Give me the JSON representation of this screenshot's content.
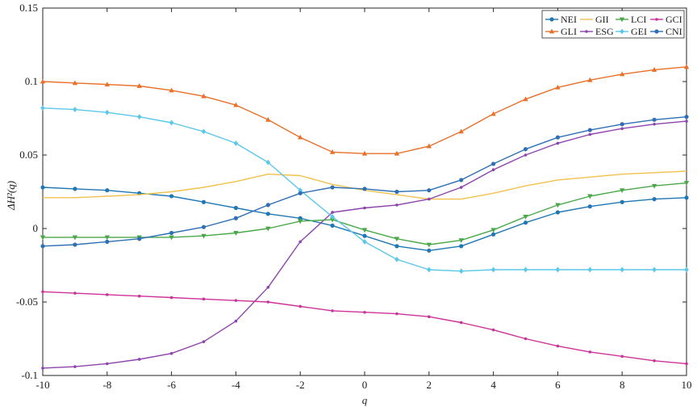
{
  "chart_data": {
    "type": "line",
    "xlabel": "q",
    "ylabel": "ΔH²(q)",
    "xlim": [
      -10,
      10
    ],
    "ylim": [
      -0.1,
      0.15
    ],
    "xticks": [
      -10,
      -8,
      -6,
      -4,
      -2,
      0,
      2,
      4,
      6,
      8,
      10
    ],
    "yticks": [
      -0.1,
      -0.05,
      0,
      0.05,
      0.1,
      0.15
    ],
    "xtick_labels": [
      "-10",
      "-8",
      "-6",
      "-4",
      "-2",
      "0",
      "2",
      "4",
      "6",
      "8",
      "10"
    ],
    "ytick_labels": [
      "-0.1",
      "-0.05",
      "0",
      "0.05",
      "0.1",
      "0.15"
    ],
    "grid": false,
    "legend_position": "top-right",
    "x": [
      -10,
      -9,
      -8,
      -7,
      -6,
      -5,
      -4,
      -3,
      -2,
      -1,
      0,
      1,
      2,
      3,
      4,
      5,
      6,
      7,
      8,
      9,
      10
    ],
    "series": [
      {
        "name": "NEI",
        "color": "#1f77b4",
        "marker": "circle",
        "values": [
          0.028,
          0.027,
          0.026,
          0.024,
          0.022,
          0.018,
          0.014,
          0.01,
          0.007,
          0.002,
          -0.005,
          -0.012,
          -0.015,
          -0.012,
          -0.004,
          0.004,
          0.011,
          0.015,
          0.018,
          0.02,
          0.021
        ]
      },
      {
        "name": "GLI",
        "color": "#e8702a",
        "marker": "triangle",
        "values": [
          0.1,
          0.099,
          0.098,
          0.097,
          0.094,
          0.09,
          0.084,
          0.074,
          0.062,
          0.052,
          0.051,
          0.051,
          0.056,
          0.066,
          0.078,
          0.088,
          0.096,
          0.101,
          0.105,
          0.108,
          0.11
        ]
      },
      {
        "name": "GII",
        "color": "#f2c14e",
        "marker": "none",
        "values": [
          0.021,
          0.021,
          0.022,
          0.023,
          0.025,
          0.028,
          0.032,
          0.037,
          0.036,
          0.03,
          0.026,
          0.023,
          0.02,
          0.02,
          0.024,
          0.029,
          0.033,
          0.035,
          0.037,
          0.038,
          0.039
        ]
      },
      {
        "name": "ESG",
        "color": "#8e44ad",
        "marker": "point",
        "values": [
          -0.095,
          -0.094,
          -0.092,
          -0.089,
          -0.085,
          -0.077,
          -0.063,
          -0.04,
          -0.009,
          0.011,
          0.014,
          0.016,
          0.02,
          0.028,
          0.04,
          0.05,
          0.058,
          0.064,
          0.068,
          0.071,
          0.073
        ]
      },
      {
        "name": "LCI",
        "color": "#4aa84a",
        "marker": "triangle-down",
        "values": [
          -0.006,
          -0.006,
          -0.006,
          -0.006,
          -0.006,
          -0.005,
          -0.003,
          0.0,
          0.005,
          0.006,
          -0.001,
          -0.007,
          -0.011,
          -0.008,
          -0.001,
          0.008,
          0.016,
          0.022,
          0.026,
          0.029,
          0.031
        ]
      },
      {
        "name": "GEI",
        "color": "#5bc8ea",
        "marker": "diamond",
        "values": [
          0.082,
          0.081,
          0.079,
          0.076,
          0.072,
          0.066,
          0.058,
          0.045,
          0.026,
          0.008,
          -0.009,
          -0.021,
          -0.028,
          -0.029,
          -0.028,
          -0.028,
          -0.028,
          -0.028,
          -0.028,
          -0.028,
          -0.028
        ]
      },
      {
        "name": "GCI",
        "color": "#cc3399",
        "marker": "point",
        "values": [
          -0.043,
          -0.044,
          -0.045,
          -0.046,
          -0.047,
          -0.048,
          -0.049,
          -0.05,
          -0.053,
          -0.056,
          -0.057,
          -0.058,
          -0.06,
          -0.064,
          -0.069,
          -0.075,
          -0.08,
          -0.084,
          -0.087,
          -0.09,
          -0.092
        ]
      },
      {
        "name": "CNI",
        "color": "#2e6fb5",
        "marker": "circle",
        "values": [
          -0.012,
          -0.011,
          -0.009,
          -0.007,
          -0.003,
          0.001,
          0.007,
          0.016,
          0.024,
          0.028,
          0.027,
          0.025,
          0.026,
          0.033,
          0.044,
          0.054,
          0.062,
          0.067,
          0.071,
          0.074,
          0.076
        ]
      }
    ]
  }
}
